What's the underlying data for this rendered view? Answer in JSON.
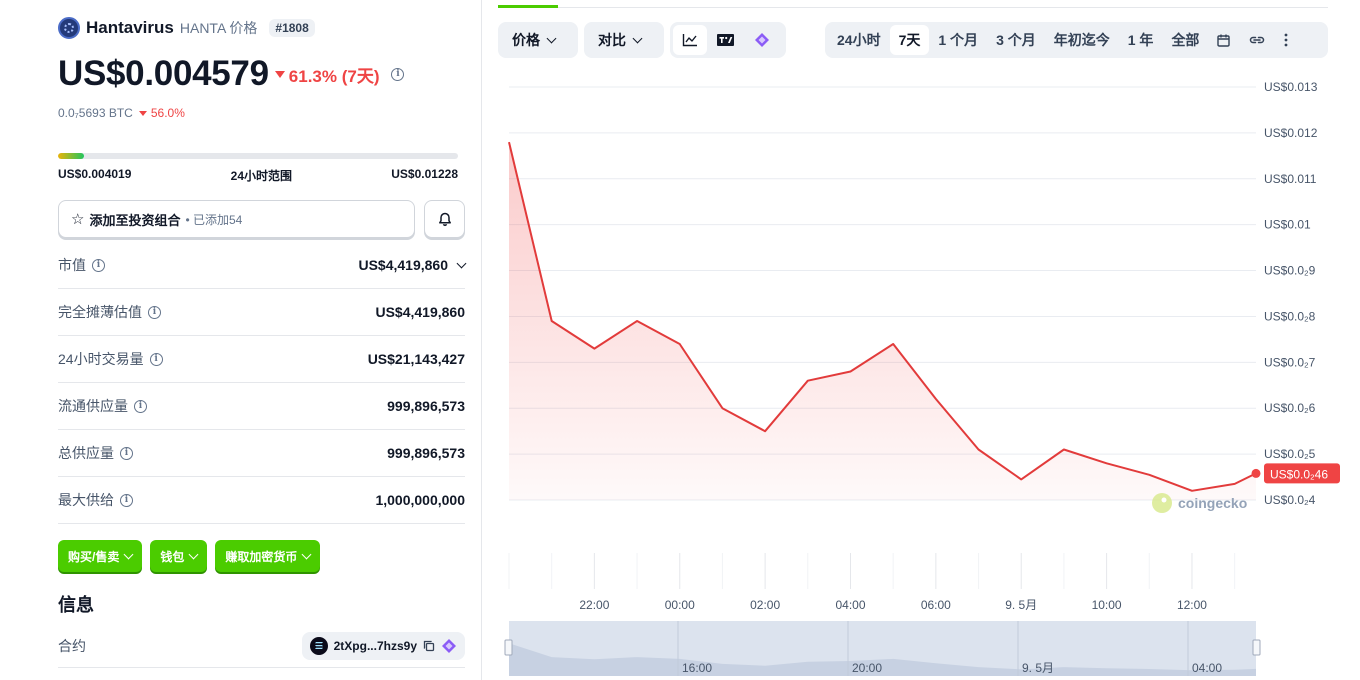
{
  "coin": {
    "name": "Hantavirus",
    "symbol_label": "HANTA 价格",
    "rank": "#1808",
    "price": "US$0.004579",
    "change_7d": "61.3% (7天)",
    "btc_price": "0.0₇5693 BTC",
    "btc_change": "56.0%"
  },
  "range_24h": {
    "low": "US$0.004019",
    "label": "24小时范围",
    "high": "US$0.01228",
    "fill_fraction": 0.066
  },
  "portfolio": {
    "label": "添加至投资组合",
    "added": "• 已添加54"
  },
  "stats": [
    {
      "label": "市值",
      "value": "US$4,419,860",
      "has_dropdown": true
    },
    {
      "label": "完全摊薄估值",
      "value": "US$4,419,860"
    },
    {
      "label": "24小时交易量",
      "value": "US$21,143,427"
    },
    {
      "label": "流通供应量",
      "value": "999,896,573"
    },
    {
      "label": "总供应量",
      "value": "999,896,573"
    },
    {
      "label": "最大供给",
      "value": "1,000,000,000"
    }
  ],
  "actions": {
    "buy_sell": "购买/售卖",
    "wallet": "钱包",
    "earn": "赚取加密货币"
  },
  "info": {
    "title": "信息",
    "contract_label": "合约",
    "contract_value": "2tXpg...7hzs9y"
  },
  "chart_controls": {
    "price_dropdown": "价格",
    "compare_dropdown": "对比",
    "ranges": [
      "24小时",
      "7天",
      "1 个月",
      "3 个月",
      "年初迄今",
      "1 年",
      "全部"
    ],
    "active_range": "7天"
  },
  "colors": {
    "accent_green": "#4bcc00",
    "negative_red": "#ef4444",
    "line_red": "#e23b3b"
  },
  "chart_data": {
    "type": "area",
    "y_ticks": [
      "US$0.013",
      "US$0.012",
      "US$0.011",
      "US$0.01",
      "US$0.0₂9",
      "US$0.0₂8",
      "US$0.0₂7",
      "US$0.0₂6",
      "US$0.0₂5",
      "US$0.0₂4"
    ],
    "y_tick_values": [
      0.013,
      0.012,
      0.011,
      0.01,
      0.009,
      0.008,
      0.007,
      0.006,
      0.005,
      0.004
    ],
    "ylim": [
      0.004,
      0.013
    ],
    "x_ticks": [
      "22:00",
      "00:00",
      "02:00",
      "04:00",
      "06:00",
      "9. 5月",
      "10:00",
      "12:00"
    ],
    "x_tick_hours": [
      -2,
      0,
      2,
      4,
      6,
      8,
      10,
      12
    ],
    "xlim_hours": [
      -4,
      13.5
    ],
    "series": [
      {
        "x_hours": [
          -4,
          -3,
          -2,
          -1,
          0,
          1,
          2,
          3,
          4,
          5,
          6,
          7,
          8,
          9,
          10,
          11,
          12,
          13,
          13.5
        ],
        "values": [
          0.0118,
          0.0079,
          0.0073,
          0.0079,
          0.0074,
          0.006,
          0.0055,
          0.0066,
          0.0068,
          0.0074,
          0.0062,
          0.0051,
          0.00445,
          0.0051,
          0.0048,
          0.00455,
          0.0042,
          0.00435,
          0.00458
        ]
      }
    ],
    "last_value_label": "US$0.0₂46",
    "watermark": "coingecko",
    "navigator_ticks": [
      "16:00",
      "20:00",
      "9. 5月",
      "04:00"
    ]
  }
}
